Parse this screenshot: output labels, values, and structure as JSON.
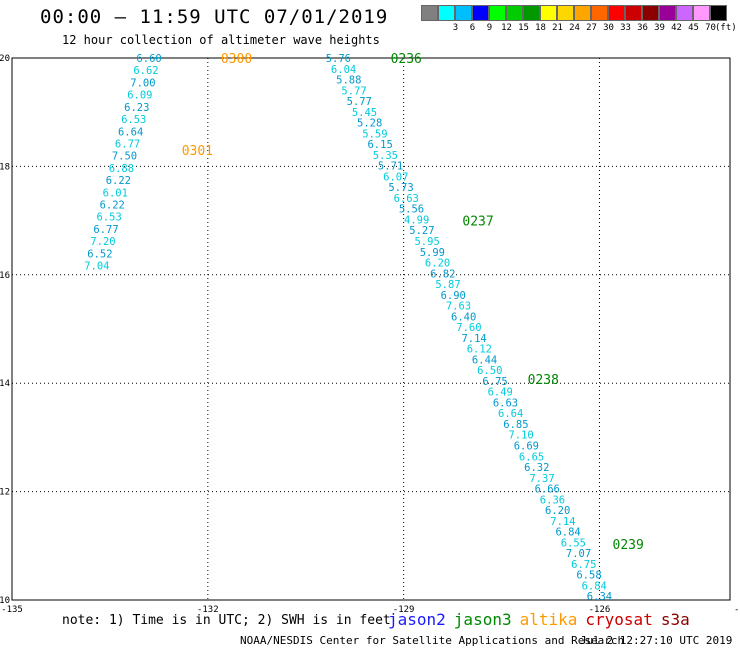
{
  "header": {
    "title": "00:00 – 11:59 UTC 07/01/2019",
    "subtitle": "12 hour collection of altimeter wave heights"
  },
  "legend": {
    "items": [
      {
        "label": "",
        "color": "#808080"
      },
      {
        "label": "3",
        "color": "#00ffff"
      },
      {
        "label": "6",
        "color": "#00bfff"
      },
      {
        "label": "9",
        "color": "#0000ff"
      },
      {
        "label": "12",
        "color": "#00ff00"
      },
      {
        "label": "15",
        "color": "#00cc00"
      },
      {
        "label": "18",
        "color": "#009900"
      },
      {
        "label": "21",
        "color": "#ffff00"
      },
      {
        "label": "24",
        "color": "#ffd700"
      },
      {
        "label": "27",
        "color": "#ffa500"
      },
      {
        "label": "30",
        "color": "#ff6600"
      },
      {
        "label": "33",
        "color": "#ff0000"
      },
      {
        "label": "36",
        "color": "#cc0000"
      },
      {
        "label": "39",
        "color": "#8b0000"
      },
      {
        "label": "42",
        "color": "#990099"
      },
      {
        "label": "45",
        "color": "#cc66ff"
      },
      {
        "label": "70",
        "color": "#ff99ff"
      },
      {
        "label": "",
        "color": "#000000"
      }
    ],
    "unit": "(ft)"
  },
  "map": {
    "lon_range": [
      -135,
      -124
    ],
    "lat_range": [
      10,
      20
    ],
    "x_ticks": [
      "-135",
      "-132",
      "-129",
      "-126",
      "-123",
      "-120"
    ],
    "y_ticks": [
      "20",
      "18",
      "16",
      "14",
      "12",
      "10"
    ],
    "colors": {
      "jason3_time": "#008800",
      "altika_time": "#ff9900",
      "swh_cyan": "#00ccdd",
      "swh_blue": "#0099cc"
    },
    "time_labels": [
      {
        "text": "0300",
        "lon": -131.8,
        "lat": 20.0,
        "sat": "altika"
      },
      {
        "text": "0301",
        "lon": -132.4,
        "lat": 18.3,
        "sat": "altika"
      },
      {
        "text": "0236",
        "lon": -129.2,
        "lat": 20.0,
        "sat": "jason3"
      },
      {
        "text": "0237",
        "lon": -128.1,
        "lat": 17.0,
        "sat": "jason3"
      },
      {
        "text": "0238",
        "lon": -127.1,
        "lat": 14.08,
        "sat": "jason3"
      },
      {
        "text": "0239",
        "lon": -125.8,
        "lat": 11.03,
        "sat": "jason3"
      }
    ],
    "tracks": [
      {
        "sat": "altika",
        "start": [
          -132.9,
          20.0
        ],
        "end": [
          -133.7,
          16.17
        ],
        "values": [
          "6.60",
          "6.62",
          "7.00",
          "6.09",
          "6.23",
          "6.53",
          "6.64",
          "6.77",
          "7.50",
          "6.88",
          "6.22",
          "6.01",
          "6.22",
          "6.53",
          "6.77",
          "7.20",
          "6.52",
          "7.04"
        ]
      },
      {
        "sat": "jason3",
        "start": [
          -130.0,
          20.0
        ],
        "end": [
          -126.0,
          10.07
        ],
        "values": [
          "5.76",
          "6.04",
          "5.88",
          "5.77",
          "5.77",
          "5.45",
          "5.28",
          "5.59",
          "6.15",
          "5.35",
          "5.71",
          "6.07",
          "5.73",
          "6.63",
          "5.56",
          "4.99",
          "5.27",
          "5.95",
          "5.99",
          "6.20",
          "6.82",
          "5.87",
          "6.90",
          "7.63",
          "6.40",
          "7.60",
          "7.14",
          "6.12",
          "6.44",
          "6.50",
          "6.75",
          "6.49",
          "6.63",
          "6.64",
          "6.85",
          "7.10",
          "6.69",
          "6.65",
          "6.32",
          "7.37",
          "6.66",
          "6.36",
          "6.20",
          "7.14",
          "6.84",
          "6.55",
          "7.07",
          "6.75",
          "6.58",
          "6.84",
          "6.34"
        ]
      }
    ]
  },
  "footer": {
    "note": "note: 1) Time is in UTC; 2) SWH is in feet",
    "satellites": [
      {
        "name": "jason2",
        "color": "#1a1aff"
      },
      {
        "name": "jason3",
        "color": "#008800"
      },
      {
        "name": "altika",
        "color": "#ff9900"
      },
      {
        "name": "cryosat",
        "color": "#cc0000"
      },
      {
        "name": "s3a",
        "color": "#8b0000"
      }
    ],
    "credit": "NOAA/NESDIS Center for Satellite Applications and Research",
    "timestamp": "Jul  2 12:27:10 UTC 2019"
  }
}
